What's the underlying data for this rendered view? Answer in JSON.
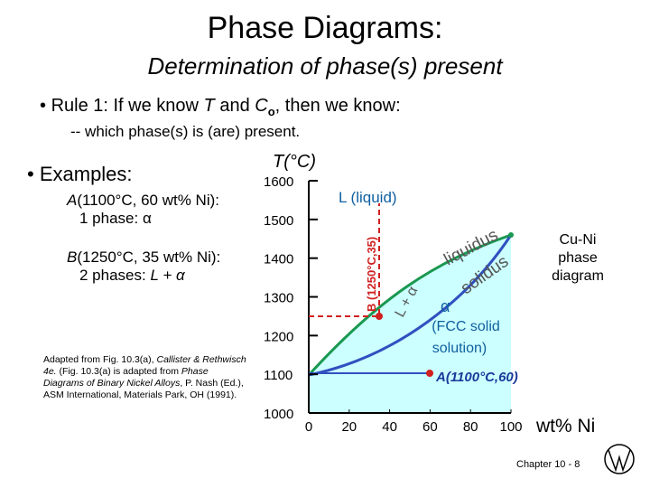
{
  "header": {
    "title": "Phase Diagrams:",
    "subtitle": "Determination of phase(s) present"
  },
  "rule": {
    "bullet": "•",
    "parts": [
      "Rule 1:  If we know ",
      "T",
      " and ",
      "C",
      "o",
      ", then we know:"
    ],
    "sub": "-- which phase(s) is (are) present."
  },
  "examples": {
    "bullet": "•",
    "label": "Examples:",
    "items": [
      {
        "point": "A",
        "condition": "(1100°C, 60 wt% Ni):",
        "result": "1 phase:  α"
      },
      {
        "point": "B",
        "condition": "(1250°C, 35 wt% Ni):",
        "result_prefix": "2 phases: ",
        "result": "L + α"
      }
    ]
  },
  "citation": [
    "Adapted from Fig. 10.3(a), ",
    "Callister & Rethwisch 4e.",
    " (Fig. 10.3(a) is adapted from ",
    "Phase Diagrams of Binary Nickel Alloys",
    ", P. Nash (Ed.), ASM International, Materials Park, OH (1991)."
  ],
  "diagram": {
    "y_label": "T(°C)",
    "x_label": "wt% Ni",
    "ylim": [
      1000,
      1600
    ],
    "yticks": [
      1000,
      1100,
      1200,
      1300,
      1400,
      1500,
      1600
    ],
    "xlim": [
      0,
      100
    ],
    "xticks": [
      0,
      20,
      40,
      60,
      80,
      100
    ],
    "liquid_label": "L (liquid)",
    "liquidus_label": "liquidus",
    "solidus_label": "solidus",
    "two_phase_label": "L + α",
    "alpha_label": "α",
    "alpha_desc": [
      "(FCC solid",
      "solution)"
    ],
    "system_label": [
      "Cu-Ni",
      "phase",
      "diagram"
    ],
    "point_b_label": "B (1250°C,35)",
    "point_a_label": "A(1100°C,60)"
  },
  "footer": {
    "chapter": "Chapter 10 - ",
    "page": "8"
  }
}
